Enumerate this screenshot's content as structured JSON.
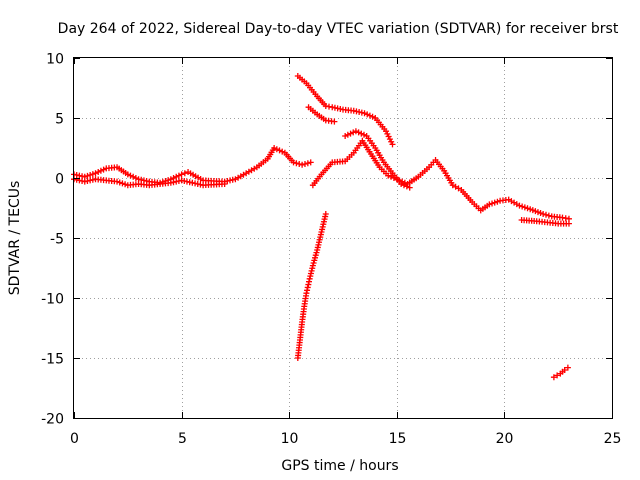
{
  "chart_data": {
    "type": "scatter",
    "title": "Day 264 of 2022, Sidereal Day-to-day VTEC variation (SDTVAR) for receiver brst",
    "xlabel": "GPS time / hours",
    "ylabel": "SDTVAR / TECUs",
    "xlim": [
      0,
      25
    ],
    "ylim": [
      -20,
      10
    ],
    "grid": true,
    "marker": "+",
    "x_ticks": [
      "0",
      "5",
      "10",
      "15",
      "20",
      "25"
    ],
    "y_ticks": [
      "10",
      "5",
      "0",
      "-5",
      "-10",
      "-15",
      "-20"
    ],
    "colors": {
      "series": "#ff0000",
      "axis": "#000000",
      "grid": "#a0a0a0"
    },
    "series": [
      {
        "name": "main_track",
        "color": "#ff0000",
        "points": [
          [
            0.0,
            0.3
          ],
          [
            0.5,
            0.1
          ],
          [
            1.0,
            0.4
          ],
          [
            1.5,
            0.8
          ],
          [
            2.0,
            0.9
          ],
          [
            2.5,
            0.3
          ],
          [
            3.0,
            -0.1
          ],
          [
            3.5,
            -0.3
          ],
          [
            4.0,
            -0.4
          ],
          [
            4.5,
            -0.1
          ],
          [
            5.0,
            0.3
          ],
          [
            5.3,
            0.5
          ],
          [
            6.0,
            -0.2
          ],
          [
            7.0,
            -0.3
          ],
          [
            7.5,
            -0.1
          ],
          [
            8.0,
            0.4
          ],
          [
            8.5,
            0.9
          ],
          [
            9.0,
            1.6
          ],
          [
            9.3,
            2.5
          ],
          [
            9.8,
            2.1
          ],
          [
            10.2,
            1.3
          ],
          [
            10.6,
            1.1
          ],
          [
            11.0,
            1.3
          ]
        ]
      },
      {
        "name": "main_track_lower",
        "color": "#ff0000",
        "points": [
          [
            0.0,
            -0.1
          ],
          [
            0.5,
            -0.3
          ],
          [
            1.0,
            -0.1
          ],
          [
            1.5,
            -0.2
          ],
          [
            2.0,
            -0.3
          ],
          [
            2.5,
            -0.6
          ],
          [
            3.0,
            -0.5
          ],
          [
            3.5,
            -0.6
          ],
          [
            4.0,
            -0.5
          ],
          [
            4.5,
            -0.4
          ],
          [
            5.0,
            -0.2
          ],
          [
            6.0,
            -0.6
          ],
          [
            7.0,
            -0.5
          ]
        ]
      },
      {
        "name": "upper_branch",
        "color": "#ff0000",
        "points": [
          [
            10.4,
            8.5
          ],
          [
            10.8,
            7.9
          ],
          [
            11.3,
            6.8
          ],
          [
            11.7,
            6.0
          ],
          [
            12.0,
            5.9
          ],
          [
            12.5,
            5.7
          ],
          [
            13.0,
            5.6
          ],
          [
            13.5,
            5.4
          ],
          [
            14.0,
            5.0
          ],
          [
            14.5,
            3.9
          ],
          [
            14.8,
            2.8
          ]
        ]
      },
      {
        "name": "second_upper_branch",
        "color": "#ff0000",
        "points": [
          [
            10.9,
            5.9
          ],
          [
            11.3,
            5.3
          ],
          [
            11.7,
            4.8
          ],
          [
            12.1,
            4.7
          ]
        ]
      },
      {
        "name": "post_11h_track",
        "color": "#ff0000",
        "points": [
          [
            11.1,
            -0.6
          ],
          [
            11.5,
            0.3
          ],
          [
            12.0,
            1.3
          ],
          [
            12.6,
            1.4
          ],
          [
            13.0,
            2.1
          ],
          [
            13.4,
            3.1
          ],
          [
            13.8,
            2.0
          ],
          [
            14.2,
            0.9
          ],
          [
            14.6,
            0.2
          ],
          [
            15.0,
            -0.1
          ],
          [
            15.5,
            -0.5
          ],
          [
            16.0,
            0.1
          ],
          [
            16.5,
            0.9
          ],
          [
            16.8,
            1.5
          ],
          [
            17.2,
            0.6
          ],
          [
            17.6,
            -0.6
          ],
          [
            18.0,
            -1.0
          ],
          [
            18.5,
            -2.0
          ],
          [
            18.9,
            -2.7
          ],
          [
            19.3,
            -2.2
          ],
          [
            19.8,
            -1.9
          ],
          [
            20.2,
            -1.8
          ],
          [
            20.7,
            -2.3
          ],
          [
            21.2,
            -2.6
          ],
          [
            21.8,
            -3.0
          ],
          [
            22.2,
            -3.2
          ],
          [
            22.7,
            -3.3
          ],
          [
            23.0,
            -3.4
          ]
        ]
      },
      {
        "name": "track_13_15h",
        "color": "#ff0000",
        "points": [
          [
            12.6,
            3.5
          ],
          [
            13.1,
            3.9
          ],
          [
            13.6,
            3.5
          ],
          [
            14.0,
            2.5
          ],
          [
            14.4,
            1.3
          ],
          [
            14.8,
            0.4
          ],
          [
            15.2,
            -0.5
          ],
          [
            15.6,
            -0.8
          ]
        ]
      },
      {
        "name": "late_lower_track",
        "color": "#ff0000",
        "points": [
          [
            20.8,
            -3.5
          ],
          [
            21.5,
            -3.6
          ],
          [
            22.0,
            -3.7
          ],
          [
            22.5,
            -3.8
          ],
          [
            23.0,
            -3.8
          ]
        ]
      },
      {
        "name": "steep_branch",
        "color": "#ff0000",
        "points": [
          [
            10.4,
            -15.0
          ],
          [
            10.5,
            -13.5
          ],
          [
            10.6,
            -12.0
          ],
          [
            10.7,
            -10.7
          ],
          [
            10.8,
            -9.6
          ],
          [
            10.95,
            -8.4
          ],
          [
            11.1,
            -7.3
          ],
          [
            11.3,
            -6.0
          ],
          [
            11.5,
            -4.5
          ],
          [
            11.7,
            -3.0
          ]
        ]
      },
      {
        "name": "late_isolated_segment",
        "color": "#ff0000",
        "points": [
          [
            22.3,
            -16.6
          ],
          [
            22.6,
            -16.3
          ],
          [
            22.8,
            -16.0
          ],
          [
            22.95,
            -15.8
          ]
        ]
      }
    ]
  }
}
